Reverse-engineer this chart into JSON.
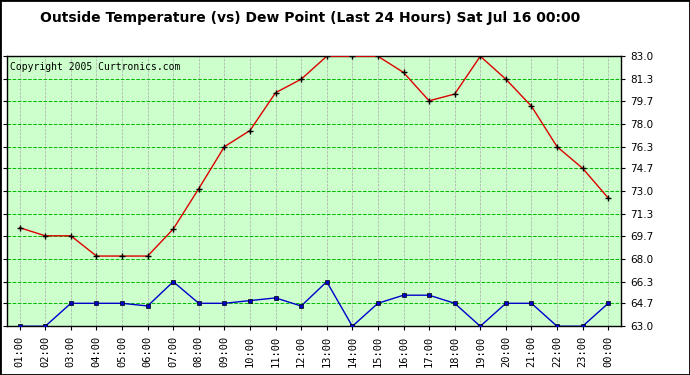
{
  "title": "Outside Temperature (vs) Dew Point (Last 24 Hours) Sat Jul 16 00:00",
  "copyright": "Copyright 2005 Curtronics.com",
  "x_labels": [
    "01:00",
    "02:00",
    "03:00",
    "04:00",
    "05:00",
    "06:00",
    "07:00",
    "08:00",
    "09:00",
    "10:00",
    "11:00",
    "12:00",
    "13:00",
    "14:00",
    "15:00",
    "16:00",
    "17:00",
    "18:00",
    "19:00",
    "20:00",
    "21:00",
    "22:00",
    "23:00",
    "00:00"
  ],
  "temp_data": [
    70.3,
    69.7,
    69.7,
    68.2,
    68.2,
    68.2,
    70.2,
    73.2,
    76.3,
    77.5,
    80.3,
    81.3,
    83.0,
    83.0,
    83.0,
    81.8,
    79.7,
    80.2,
    83.0,
    81.3,
    79.3,
    76.3,
    74.7,
    72.5
  ],
  "dew_data": [
    63.0,
    63.0,
    64.7,
    64.7,
    64.7,
    64.5,
    66.3,
    64.7,
    64.7,
    64.9,
    65.1,
    64.5,
    66.3,
    63.0,
    64.7,
    65.3,
    65.3,
    64.7,
    63.0,
    64.7,
    64.7,
    63.0,
    63.0,
    64.7
  ],
  "ylim": [
    63.0,
    83.0
  ],
  "yticks": [
    63.0,
    64.7,
    66.3,
    68.0,
    69.7,
    71.3,
    73.0,
    74.7,
    76.3,
    78.0,
    79.7,
    81.3,
    83.0
  ],
  "temp_color": "#dd0000",
  "dew_color": "#0000cc",
  "outer_bg": "#ffffff",
  "plot_bg_color": "#ccffcc",
  "grid_color_green": "#00bb00",
  "grid_color_gray": "#aaaaaa",
  "title_fontsize": 10,
  "copyright_fontsize": 7,
  "tick_fontsize": 7.5
}
